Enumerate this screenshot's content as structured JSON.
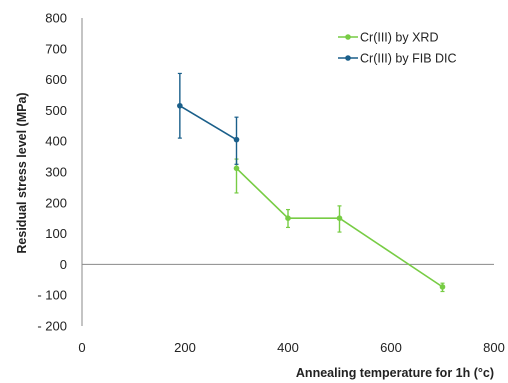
{
  "chart_data": {
    "type": "line",
    "title": "",
    "xlabel": "Annealing temperature for 1h (°c)",
    "ylabel": "Residual stress level (MPa)",
    "xlim": [
      0,
      800
    ],
    "ylim": [
      -200,
      800
    ],
    "xticks": [
      0,
      200,
      400,
      600,
      800
    ],
    "xtick_labels": [
      "0",
      "200",
      "400",
      "600",
      "800"
    ],
    "yticks": [
      800,
      700,
      600,
      500,
      400,
      300,
      200,
      100,
      0,
      -100,
      -200
    ],
    "ytick_labels": [
      "800",
      "700",
      "600",
      "500",
      "400",
      "300",
      "200",
      "100",
      "0",
      "- 100",
      "- 200"
    ],
    "grid": false,
    "legend_position": "top-right",
    "series": [
      {
        "name": "Cr(III) by XRD",
        "color": "#77cc44",
        "x": [
          300,
          400,
          500,
          700
        ],
        "y": [
          312,
          150,
          150,
          -73
        ],
        "err_low": [
          80,
          30,
          45,
          15
        ],
        "err_high": [
          30,
          28,
          40,
          12
        ]
      },
      {
        "name": "Cr(III) by FIB DIC",
        "color": "#1a5f8a",
        "x": [
          190,
          300
        ],
        "y": [
          515,
          405
        ],
        "err_low": [
          105,
          80
        ],
        "err_high": [
          105,
          73
        ]
      }
    ]
  }
}
